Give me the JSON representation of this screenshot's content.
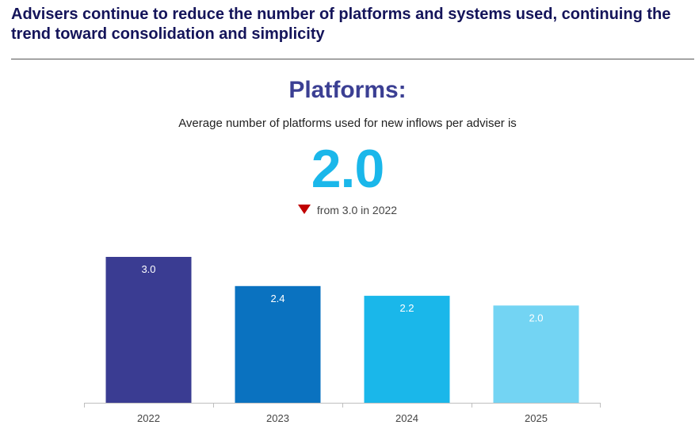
{
  "headline": "Advisers continue to reduce the number of platforms and systems used, continuing the trend toward consolidation and simplicity",
  "section_title": "Platforms:",
  "intro_text": "Average number of platforms used for new inflows per adviser is",
  "big_number": "2.0",
  "change_text": "from 3.0 in 2022",
  "change_icon": "triangle-down-icon",
  "colors": {
    "headline": "#14145a",
    "title": "#3b3f93",
    "big_number": "#1ab7ea",
    "down_arrow": "#c00000"
  },
  "chart_data": {
    "type": "bar",
    "categories": [
      "2022",
      "2023",
      "2024",
      "2025"
    ],
    "values": [
      3.0,
      2.4,
      2.2,
      2.0
    ],
    "data_labels": [
      "3.0",
      "2.4",
      "2.2",
      "2.0"
    ],
    "colors": [
      "#3a3c92",
      "#0a72c0",
      "#1ab7ea",
      "#73d4f3"
    ],
    "ylim": [
      0,
      3.0
    ],
    "grid": false,
    "legend": false,
    "title": "",
    "xlabel": "",
    "ylabel": ""
  }
}
